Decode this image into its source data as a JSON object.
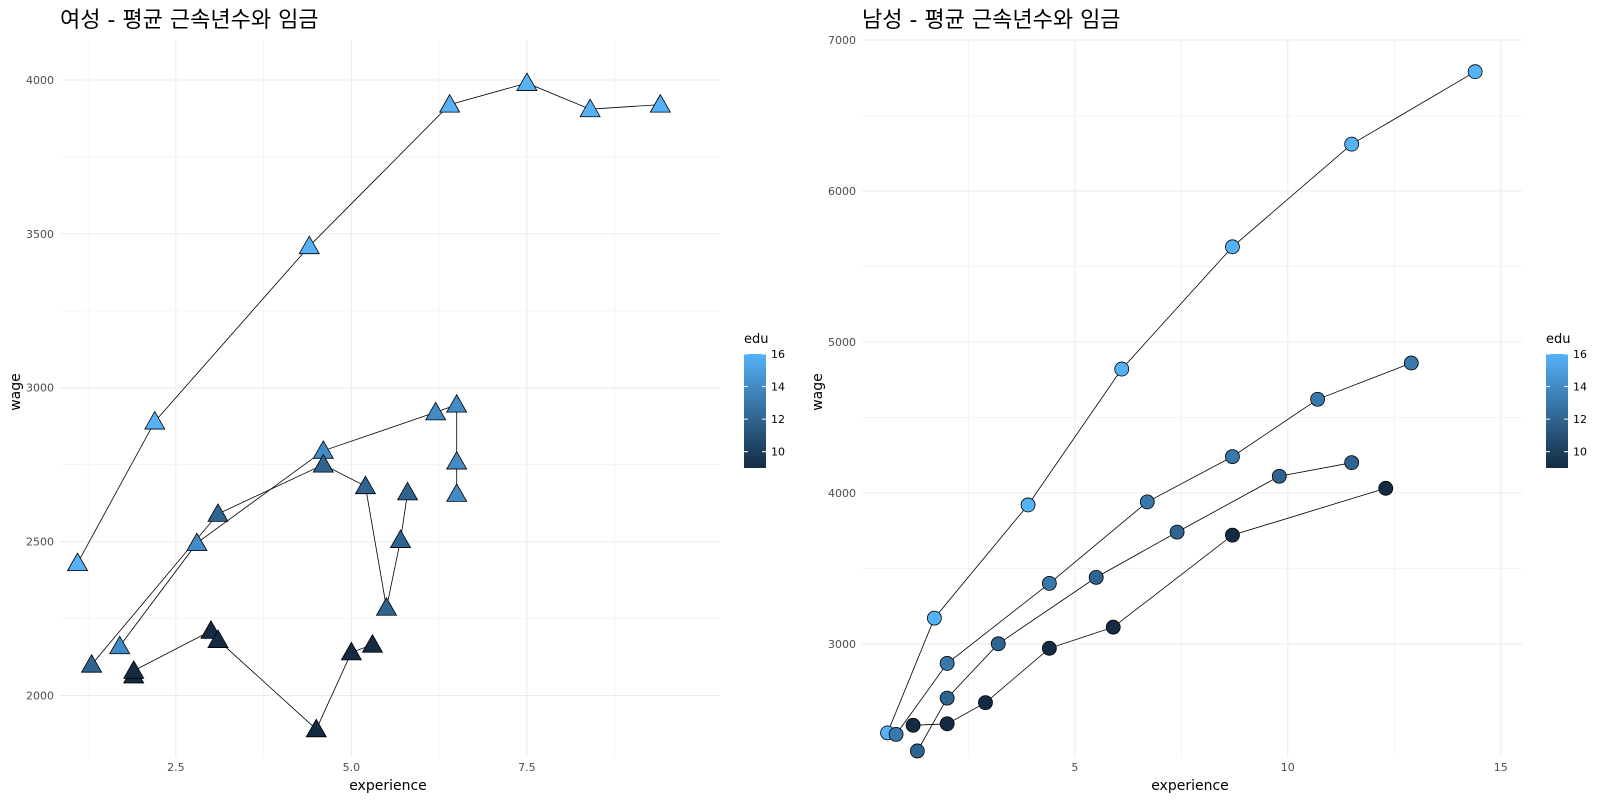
{
  "chart_data": [
    {
      "type": "line",
      "title": "여성 - 평균 근속년수와 임금",
      "xlabel": "experience",
      "ylabel": "wage",
      "xlim": [
        0.85,
        10.25
      ],
      "ylim": [
        1800,
        4130
      ],
      "x_ticks": [
        2.5,
        5.0,
        7.5
      ],
      "x_tick_labels": [
        "2.5",
        "5.0",
        "7.5"
      ],
      "x_minor_ticks": [
        1.25,
        3.75,
        6.25,
        8.75
      ],
      "y_ticks": [
        2000,
        2500,
        3000,
        3500,
        4000
      ],
      "y_tick_labels": [
        "2000",
        "2500",
        "3000",
        "3500",
        "4000"
      ],
      "y_minor_ticks": [
        2250,
        2750,
        3250,
        3750
      ],
      "marker": "triangle",
      "grid": true,
      "legend": {
        "title": "edu",
        "placement": "right",
        "min": 9,
        "max": 16,
        "ticks": [
          10,
          12,
          14,
          16
        ],
        "low_color": "#132B43",
        "high_color": "#56B1F7"
      },
      "series": [
        {
          "edu": 16,
          "points": [
            [
              1.1,
              2430
            ],
            [
              2.2,
              2890
            ],
            [
              4.4,
              3460
            ],
            [
              6.4,
              3920
            ],
            [
              7.5,
              3990
            ],
            [
              8.4,
              3905
            ],
            [
              9.4,
              3920
            ]
          ]
        },
        {
          "edu": 14,
          "points": [
            [
              1.7,
              2160
            ],
            [
              2.8,
              2495
            ],
            [
              4.6,
              2795
            ],
            [
              6.2,
              2920
            ],
            [
              6.5,
              2945
            ],
            [
              6.5,
              2760
            ],
            [
              6.5,
              2655
            ]
          ]
        },
        {
          "edu": 12,
          "points": [
            [
              1.3,
              2100
            ],
            [
              3.1,
              2590
            ],
            [
              4.6,
              2750
            ],
            [
              5.2,
              2680
            ],
            [
              5.5,
              2285
            ],
            [
              5.7,
              2505
            ],
            [
              5.8,
              2660
            ]
          ]
        },
        {
          "edu": 9,
          "points": [
            [
              1.9,
              2065
            ],
            [
              1.9,
              2080
            ],
            [
              3.0,
              2210
            ],
            [
              3.1,
              2180
            ],
            [
              4.5,
              1890
            ],
            [
              5.0,
              2140
            ],
            [
              5.3,
              2165
            ]
          ]
        }
      ]
    },
    {
      "type": "line",
      "title": "남성 - 평균 근속년수와 임금",
      "xlabel": "experience",
      "ylabel": "wage",
      "xlim": [
        0.0,
        15.5
      ],
      "ylim": [
        2250,
        7000
      ],
      "x_ticks": [
        5,
        10,
        15
      ],
      "x_tick_labels": [
        "5",
        "10",
        "15"
      ],
      "x_minor_ticks": [
        2.5,
        7.5,
        12.5
      ],
      "y_ticks": [
        3000,
        4000,
        5000,
        6000,
        7000
      ],
      "y_tick_labels": [
        "3000",
        "4000",
        "5000",
        "6000",
        "7000"
      ],
      "y_minor_ticks": [
        3500,
        4500,
        5500,
        6500
      ],
      "marker": "circle",
      "grid": true,
      "legend": {
        "title": "edu",
        "placement": "right",
        "min": 9,
        "max": 16,
        "ticks": [
          10,
          12,
          14,
          16
        ],
        "low_color": "#132B43",
        "high_color": "#56B1F7"
      },
      "series": [
        {
          "edu": 16,
          "points": [
            [
              0.6,
              2410
            ],
            [
              1.7,
              3170
            ],
            [
              3.9,
              3920
            ],
            [
              6.1,
              4820
            ],
            [
              8.7,
              5630
            ],
            [
              11.5,
              6310
            ],
            [
              14.4,
              6790
            ]
          ]
        },
        {
          "edu": 13,
          "points": [
            [
              0.8,
              2400
            ],
            [
              2.0,
              2870
            ],
            [
              4.4,
              3400
            ],
            [
              6.7,
              3940
            ],
            [
              8.7,
              4240
            ],
            [
              10.7,
              4620
            ],
            [
              12.9,
              4860
            ]
          ]
        },
        {
          "edu": 12,
          "points": [
            [
              1.3,
              2290
            ],
            [
              2.0,
              2640
            ],
            [
              3.2,
              3000
            ],
            [
              5.5,
              3440
            ],
            [
              7.4,
              3740
            ],
            [
              9.8,
              4110
            ],
            [
              11.5,
              4200
            ]
          ]
        },
        {
          "edu": 9,
          "points": [
            [
              1.2,
              2460
            ],
            [
              2.0,
              2470
            ],
            [
              2.9,
              2610
            ],
            [
              4.4,
              2970
            ],
            [
              5.9,
              3110
            ],
            [
              8.7,
              3720
            ],
            [
              12.3,
              4030
            ]
          ]
        }
      ]
    }
  ]
}
